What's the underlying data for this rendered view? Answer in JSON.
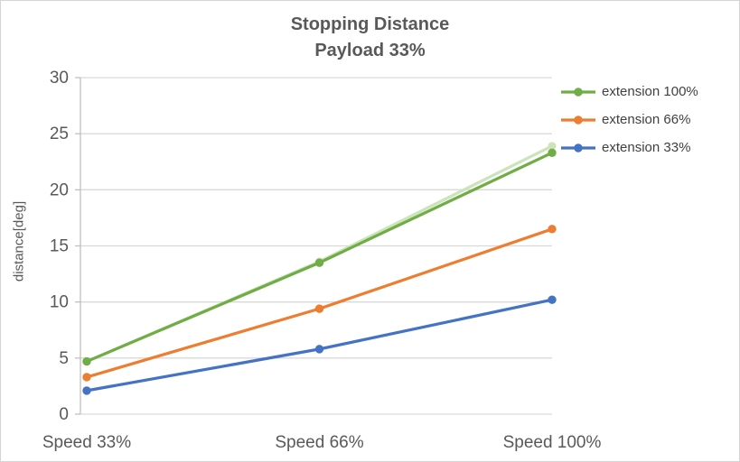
{
  "chart_data": {
    "type": "line",
    "title": "Stopping Distance",
    "subtitle": "Payload 33%",
    "categories": [
      "Speed 33%",
      "Speed 66%",
      "Speed 100%"
    ],
    "series": [
      {
        "name": "extension 100%",
        "color": "#70AD47",
        "values": [
          4.7,
          13.5,
          23.3
        ]
      },
      {
        "name": "extension 66%",
        "color": "#ED7D31",
        "values": [
          3.3,
          9.4,
          16.5
        ]
      },
      {
        "name": "extension 33%",
        "color": "#4472C4",
        "values": [
          2.1,
          5.8,
          10.2
        ]
      }
    ],
    "faint_overlay": {
      "name": "extension 100% faint duplicate",
      "color": "#CBE4BB",
      "values": [
        4.7,
        13.6,
        23.9
      ]
    },
    "xlabel": "",
    "ylabel": "distance[deg]",
    "ylim": [
      0,
      30
    ],
    "yticks": [
      0,
      5,
      10,
      15,
      20,
      25,
      30
    ],
    "grid": true,
    "legend_position": "right",
    "colors": {
      "grid": "#D9D9D9",
      "axis": "#BFBFBF",
      "text": "#595959"
    }
  }
}
